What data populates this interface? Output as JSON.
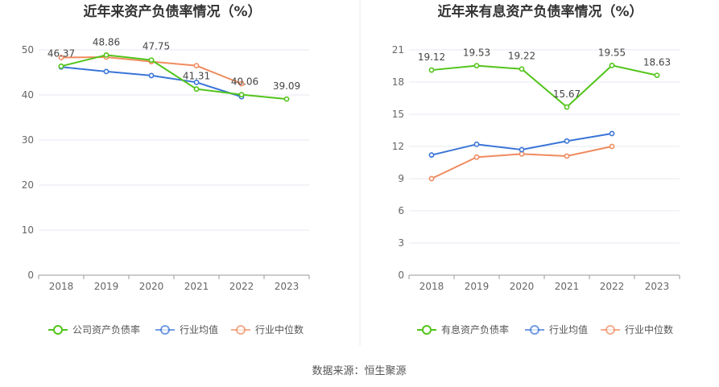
{
  "chart_data": [
    {
      "type": "line",
      "title": "近年来资产负债率情况（%）",
      "categories": [
        "2018",
        "2019",
        "2020",
        "2021",
        "2022",
        "2023"
      ],
      "ylim": [
        0,
        50
      ],
      "yticks": [
        0,
        10,
        20,
        30,
        40,
        50
      ],
      "grid": true,
      "legend_position": "bottom",
      "series": [
        {
          "name": "公司资产负债率",
          "color": "#52c41a",
          "values": [
            46.37,
            48.86,
            47.75,
            41.31,
            40.06,
            39.09
          ],
          "labels": [
            "46.37",
            "48.86",
            "47.75",
            "41.31",
            "40.06",
            "39.09"
          ]
        },
        {
          "name": "行业均值",
          "color": "#3a75d8",
          "values": [
            46.2,
            45.2,
            44.3,
            42.8,
            39.6,
            null
          ]
        },
        {
          "name": "行业中位数",
          "color": "#ef8b5f",
          "values": [
            48.3,
            48.4,
            47.4,
            46.5,
            42.5,
            null
          ]
        }
      ]
    },
    {
      "type": "line",
      "title": "近年来有息资产负债率情况（%）",
      "categories": [
        "2018",
        "2019",
        "2020",
        "2021",
        "2022",
        "2023"
      ],
      "ylim": [
        0,
        21
      ],
      "yticks": [
        0,
        3,
        6,
        9,
        12,
        15,
        18,
        21
      ],
      "grid": true,
      "legend_position": "bottom",
      "series": [
        {
          "name": "有息资产负债率",
          "color": "#52c41a",
          "values": [
            19.12,
            19.53,
            19.22,
            15.67,
            19.55,
            18.63
          ],
          "labels": [
            "19.12",
            "19.53",
            "19.22",
            "15.67",
            "19.55",
            "18.63"
          ]
        },
        {
          "name": "行业均值",
          "color": "#3a75d8",
          "values": [
            11.2,
            12.2,
            11.7,
            12.5,
            13.2,
            null
          ]
        },
        {
          "name": "行业中位数",
          "color": "#ef8b5f",
          "values": [
            9.0,
            11.0,
            11.3,
            11.1,
            12.0,
            null
          ]
        }
      ]
    }
  ],
  "footer": {
    "source": "数据来源：恒生聚源"
  }
}
